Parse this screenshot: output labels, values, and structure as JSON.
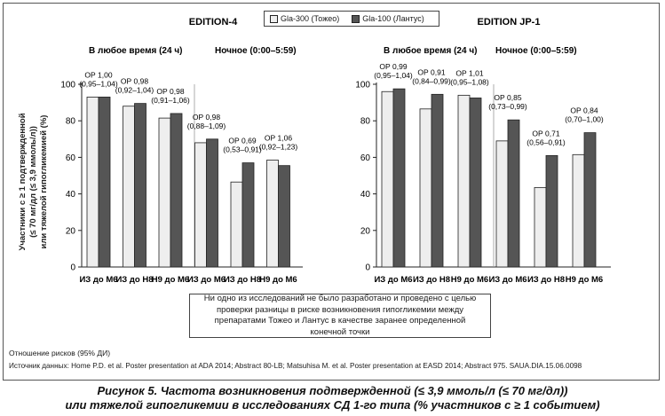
{
  "legend": [
    {
      "name": "Gla-300 (Тожео)",
      "color": "#eeeeee"
    },
    {
      "name": "Gla-100 (Лантус)",
      "color": "#555555"
    }
  ],
  "ylabel_lines": [
    "Участники с ≥ 1 подтвержденной",
    "(≤ 70 мг/дл (≤ 3,9 ммоль/л))",
    "или тяжелой гипогликемией (%)"
  ],
  "chart_data": [
    {
      "type": "bar",
      "title": "EDITION-4",
      "group_labels": [
        "В любое время (24 ч)",
        "Ночное (0:00–5:59)"
      ],
      "categories": [
        "ИЗ до М6",
        "ИЗ до Н8",
        "Н9 до М6",
        "ИЗ до М6",
        "ИЗ до Н8",
        "Н9 до М6"
      ],
      "ylim": [
        0,
        100
      ],
      "yticks": [
        "0",
        "20",
        "40",
        "60",
        "80",
        "100"
      ],
      "series": [
        {
          "name": "Gla-300 (Тожео)",
          "values": [
            93,
            88,
            81.5,
            68,
            46.5,
            58.5
          ]
        },
        {
          "name": "Gla-100 (Лантус)",
          "values": [
            93,
            89.5,
            84,
            70,
            57,
            55.5
          ]
        }
      ],
      "annotations": [
        [
          "ОР 1,00",
          "(0,95–1,04)"
        ],
        [
          "ОР 0,98",
          "(0,92–1,04)"
        ],
        [
          "ОР 0,98",
          "(0,91–1,06)"
        ],
        [
          "ОР 0,98",
          "(0,88–1,09)"
        ],
        [
          "ОР 0,69",
          "(0,53–0,91)"
        ],
        [
          "ОР 1,06",
          "(0,92–1,23)"
        ]
      ]
    },
    {
      "type": "bar",
      "title": "EDITION JP-1",
      "group_labels": [
        "В любое время (24 ч)",
        "Ночное (0:00–5:59)"
      ],
      "categories": [
        "ИЗ до М6",
        "ИЗ до Н8",
        "Н9 до М6",
        "ИЗ до М6",
        "ИЗ до Н8",
        "Н9 до М6"
      ],
      "ylim": [
        0,
        100
      ],
      "yticks": [
        "0",
        "20",
        "40",
        "60",
        "80",
        "100"
      ],
      "series": [
        {
          "name": "Gla-300 (Тожео)",
          "values": [
            96,
            86.5,
            94,
            69,
            43.5,
            61.5
          ]
        },
        {
          "name": "Gla-100 (Лантус)",
          "values": [
            97.5,
            94.5,
            92.5,
            80.5,
            61,
            73.5
          ]
        }
      ],
      "annotations": [
        [
          "ОР 0,99",
          "(0,95–1,04)"
        ],
        [
          "ОР 0,91",
          "(0,84–0,99)"
        ],
        [
          "ОР 1,01",
          "(0,95–1,08)"
        ],
        [
          "ОР 0,85",
          "(0,73–0,99)"
        ],
        [
          "ОР 0,71",
          "(0,56–0,91)"
        ],
        [
          "ОР 0,84",
          "(0,70–1,00)"
        ]
      ]
    }
  ],
  "note": "Ни одно из исследований не было разработано и проведено с целью проверки разницы в риске возникновения гипогликемии между препаратами Тожео и Лантус в качестве заранее определенной конечной точки",
  "footnote_abbrev": "Отношение рисков (95% ДИ)",
  "footnote_source": "Источник данных: Home P.D. et al. Poster presentation at ADA 2014; Abstract 80-LB; Matsuhisa M. et al. Poster presentation at EASD 2014; Abstract 975. SAUA.DIA.15.06.0098",
  "caption_line1": "Рисунок 5. Частота возникновения подтвержденной (≤ 3,9 ммоль/л (≤ 70 мг/дл))",
  "caption_line2": "или тяжелой гипогликемии в исследованиях СД 1-го типа (% участников с ≥ 1 событием)"
}
